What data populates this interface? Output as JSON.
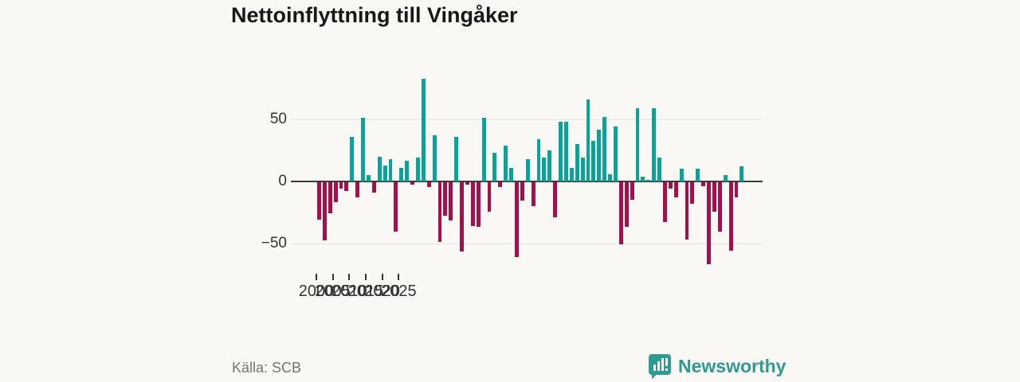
{
  "header": {
    "title": "Nettoinflyttning till Vingåker"
  },
  "footer": {
    "source": "Källa: SCB",
    "brand": "Newsworthy"
  },
  "chart_data": {
    "type": "bar",
    "title": "Nettoinflyttning till Vingåker",
    "xlabel": "",
    "ylabel": "",
    "x_tick_labels": [
      "2000",
      "2005",
      "2010",
      "2015",
      "2020",
      "2025"
    ],
    "y_tick_labels": [
      "50",
      "0",
      "−50"
    ],
    "y_tick_values": [
      50,
      0,
      -50
    ],
    "ylim": [
      -70,
      90
    ],
    "gridlines": [
      50,
      -50
    ],
    "legend": "none",
    "start_year": 2000,
    "bars_per_year": 3,
    "positive_color": "#0aa39a",
    "negative_color": "#a60f4a",
    "values": [
      -30,
      -47,
      -25,
      -16,
      -5,
      -7,
      36,
      -12,
      51,
      5,
      -8,
      20,
      13,
      18,
      -40,
      11,
      17,
      -2,
      19,
      83,
      -4,
      37,
      -48,
      -27,
      -31,
      36,
      -56,
      -2,
      -35,
      -36,
      51,
      -24,
      23,
      -4,
      29,
      11,
      -60,
      -15,
      18,
      -19,
      34,
      19,
      25,
      -28,
      48,
      48,
      11,
      30,
      19,
      66,
      33,
      42,
      52,
      6,
      44,
      -50,
      -36,
      -14,
      59,
      4,
      1,
      59,
      19,
      -32,
      -5,
      -12,
      10,
      -46,
      -17,
      10,
      -3,
      -66,
      -24,
      -40,
      5,
      -55,
      -12,
      12
    ]
  }
}
